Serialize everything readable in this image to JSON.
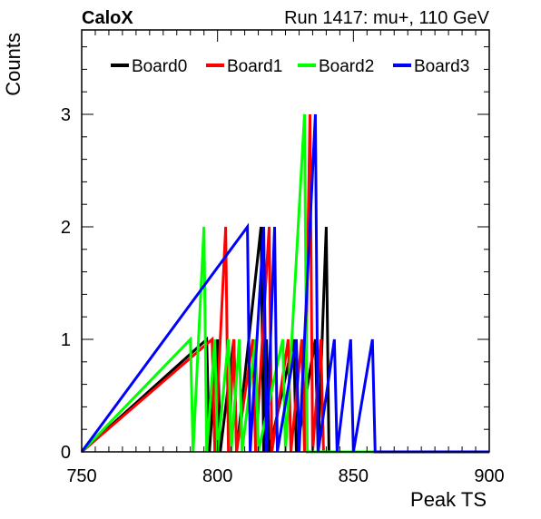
{
  "chart_data": {
    "type": "histogram",
    "experiment_label": "CaloX",
    "run_label": "Run 1417: mu+, 110 GeV",
    "xlabel": "Peak TS",
    "ylabel": "Counts",
    "xlim": [
      750,
      900
    ],
    "ylim": [
      0,
      3.75
    ],
    "bin_width": 1,
    "grid": false,
    "legend_position": "top",
    "x_ticks": [
      "750",
      "800",
      "850",
      "900"
    ],
    "y_ticks": [
      "0",
      "1",
      "2",
      "3"
    ],
    "series": [
      {
        "name": "Board0",
        "color": "#000000",
        "bins": [
          {
            "x": 796,
            "count": 1
          },
          {
            "x": 800,
            "count": 1
          },
          {
            "x": 806,
            "count": 1
          },
          {
            "x": 816,
            "count": 2
          },
          {
            "x": 818,
            "count": 1
          },
          {
            "x": 828,
            "count": 1
          },
          {
            "x": 836,
            "count": 1
          },
          {
            "x": 840,
            "count": 2
          }
        ]
      },
      {
        "name": "Board1",
        "color": "#ff0000",
        "bins": [
          {
            "x": 798,
            "count": 1
          },
          {
            "x": 803,
            "count": 2
          },
          {
            "x": 806,
            "count": 1
          },
          {
            "x": 813,
            "count": 1
          },
          {
            "x": 819,
            "count": 2
          },
          {
            "x": 826,
            "count": 1
          },
          {
            "x": 831,
            "count": 1
          },
          {
            "x": 834,
            "count": 3
          },
          {
            "x": 838,
            "count": 1
          }
        ]
      },
      {
        "name": "Board2",
        "color": "#00ff00",
        "bins": [
          {
            "x": 790,
            "count": 1
          },
          {
            "x": 795,
            "count": 2
          },
          {
            "x": 799,
            "count": 1
          },
          {
            "x": 804,
            "count": 1
          },
          {
            "x": 808,
            "count": 1
          },
          {
            "x": 814,
            "count": 1
          },
          {
            "x": 824,
            "count": 1
          },
          {
            "x": 832,
            "count": 3
          }
        ]
      },
      {
        "name": "Board3",
        "color": "#0000ff",
        "bins": [
          {
            "x": 811,
            "count": 2
          },
          {
            "x": 817,
            "count": 2
          },
          {
            "x": 821,
            "count": 2
          },
          {
            "x": 829,
            "count": 1
          },
          {
            "x": 836,
            "count": 3
          },
          {
            "x": 843,
            "count": 1
          },
          {
            "x": 849,
            "count": 1
          },
          {
            "x": 857,
            "count": 1
          }
        ]
      }
    ]
  }
}
